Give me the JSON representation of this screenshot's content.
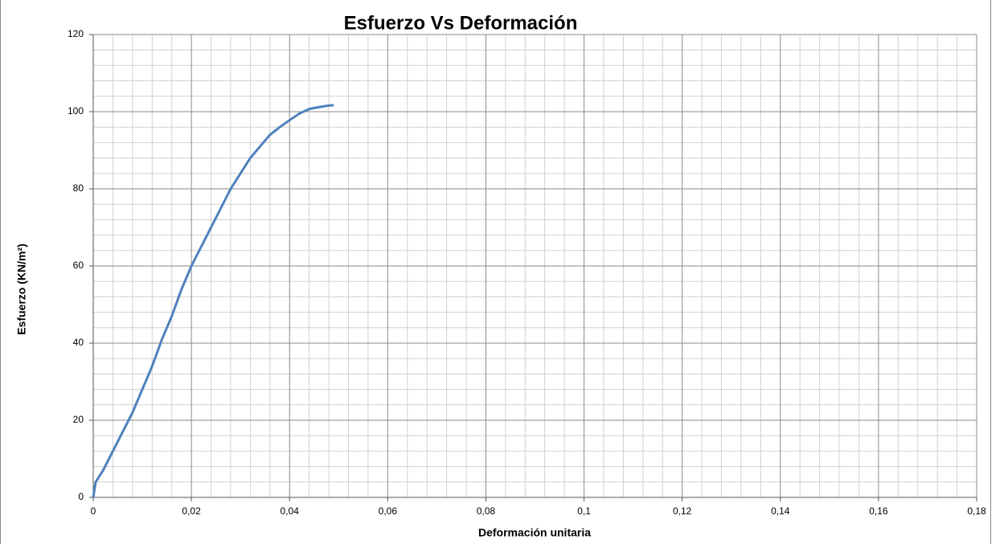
{
  "chart_data": {
    "type": "line",
    "title": "Esfuerzo Vs Deformación",
    "x_label": "Deformación unitaria",
    "y_label": "Esfuerzo (KN/m²)",
    "x": [
      0,
      0.0005,
      0.002,
      0.004,
      0.006,
      0.008,
      0.01,
      0.012,
      0.014,
      0.016,
      0.018,
      0.02,
      0.022,
      0.024,
      0.026,
      0.028,
      0.03,
      0.032,
      0.034,
      0.036,
      0.038,
      0.04,
      0.042,
      0.044,
      0.046,
      0.048,
      0.049
    ],
    "values": [
      0,
      4,
      7,
      12,
      17,
      22,
      28,
      34,
      41,
      47,
      54,
      60,
      65,
      70,
      75,
      80,
      84,
      88,
      91,
      94,
      96,
      97.8,
      99.5,
      100.7,
      101.2,
      101.6,
      101.7
    ],
    "color": "#4f81bd",
    "xlim": [
      0,
      0.18
    ],
    "xticks": [
      0,
      {
        "value": 0.02,
        "label": "0,02"
      },
      {
        "value": 0.04,
        "label": "0,04"
      },
      {
        "value": 0.06,
        "label": "0,06"
      },
      {
        "value": 0.08,
        "label": "0,08"
      },
      {
        "value": 0.1,
        "label": "0,1"
      },
      {
        "value": 0.12,
        "label": "0,12"
      },
      {
        "value": 0.14,
        "label": "0,14"
      },
      {
        "value": 0.16,
        "label": "0,16"
      },
      {
        "value": 0.18,
        "label": "0,18"
      }
    ],
    "ylim": [
      0,
      120
    ],
    "yticks": [
      0,
      20,
      40,
      60,
      80,
      100,
      120
    ],
    "grid": true,
    "minor_grid": true
  }
}
